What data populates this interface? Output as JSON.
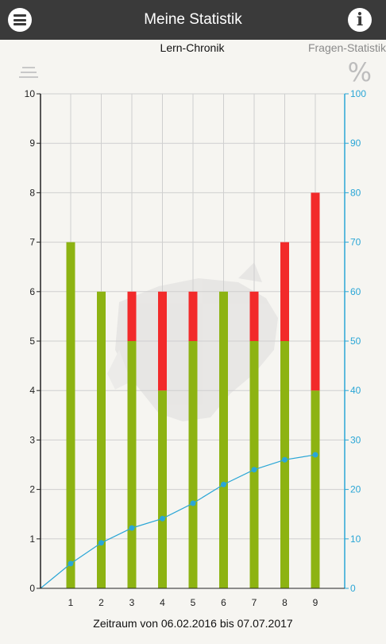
{
  "header": {
    "title": "Meine Statistik",
    "menu_icon": "hamburger-menu-icon",
    "info_label": "i"
  },
  "tabs": {
    "active_label": "Lern-Chronik",
    "inactive_label": "Fragen-Statistik"
  },
  "toolbar": {
    "filter_icon": "filter-lines-icon",
    "percent_label": "%"
  },
  "footer": {
    "period_text": "Zeitraum von 06.02.2016 bis 07.07.2017"
  },
  "chart_data": {
    "type": "bar",
    "stacked": true,
    "categories": [
      "1",
      "2",
      "3",
      "4",
      "5",
      "6",
      "7",
      "8",
      "9"
    ],
    "series": [
      {
        "values": [
          7,
          6,
          5,
          4,
          5,
          6,
          5,
          5,
          4
        ],
        "color": "#8db312"
      },
      {
        "values": [
          0,
          0,
          1,
          2,
          1,
          0,
          1,
          2,
          4
        ],
        "color": "#f22a2a"
      }
    ],
    "line_series": {
      "axis": "right",
      "values": [
        5,
        9.2,
        12.2,
        14.1,
        17.2,
        21,
        24,
        26,
        27
      ],
      "color": "#2aa6d6"
    },
    "y_left": {
      "min": 0,
      "max": 10,
      "ticks": [
        "0",
        "1",
        "2",
        "3",
        "4",
        "5",
        "6",
        "7",
        "8",
        "9",
        "10"
      ]
    },
    "y_right": {
      "min": 0,
      "max": 100,
      "ticks": [
        "0",
        "10",
        "20",
        "30",
        "40",
        "50",
        "60",
        "70",
        "80",
        "90",
        "100"
      ],
      "color": "#2aa6d6"
    },
    "grid": true
  }
}
